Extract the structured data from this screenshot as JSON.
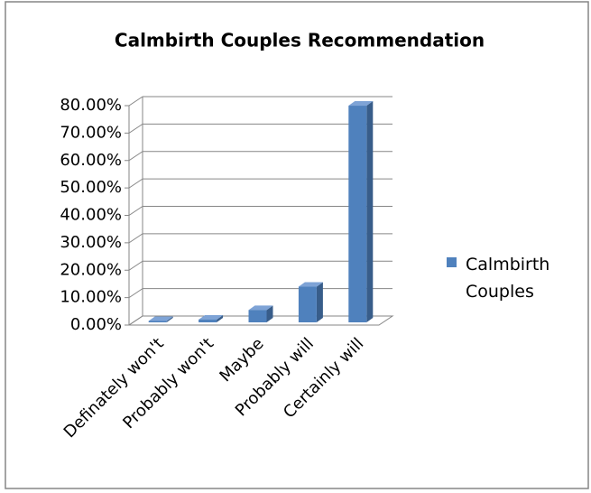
{
  "chart_data": {
    "type": "bar",
    "title": "Calmbirth Couples Recommendation",
    "categories": [
      "Definately won't",
      "Probably won't",
      "Maybe",
      "Probably will",
      "Certainly will"
    ],
    "series": [
      {
        "name": "Calmbirth Couples",
        "color": "#4f81bd",
        "values": [
          0.5,
          1,
          4.5,
          13,
          79
        ]
      }
    ],
    "ylim": [
      0,
      80
    ],
    "yticks": [
      {
        "value": 0,
        "label": "0.00%"
      },
      {
        "value": 10,
        "label": "10.00%"
      },
      {
        "value": 20,
        "label": "20.00%"
      },
      {
        "value": 30,
        "label": "30.00%"
      },
      {
        "value": 40,
        "label": "40.00%"
      },
      {
        "value": 50,
        "label": "50.00%"
      },
      {
        "value": 60,
        "label": "60.00%"
      },
      {
        "value": 70,
        "label": "70.00%"
      },
      {
        "value": 80,
        "label": "80.00%"
      }
    ],
    "grid": true,
    "legend": "right"
  }
}
